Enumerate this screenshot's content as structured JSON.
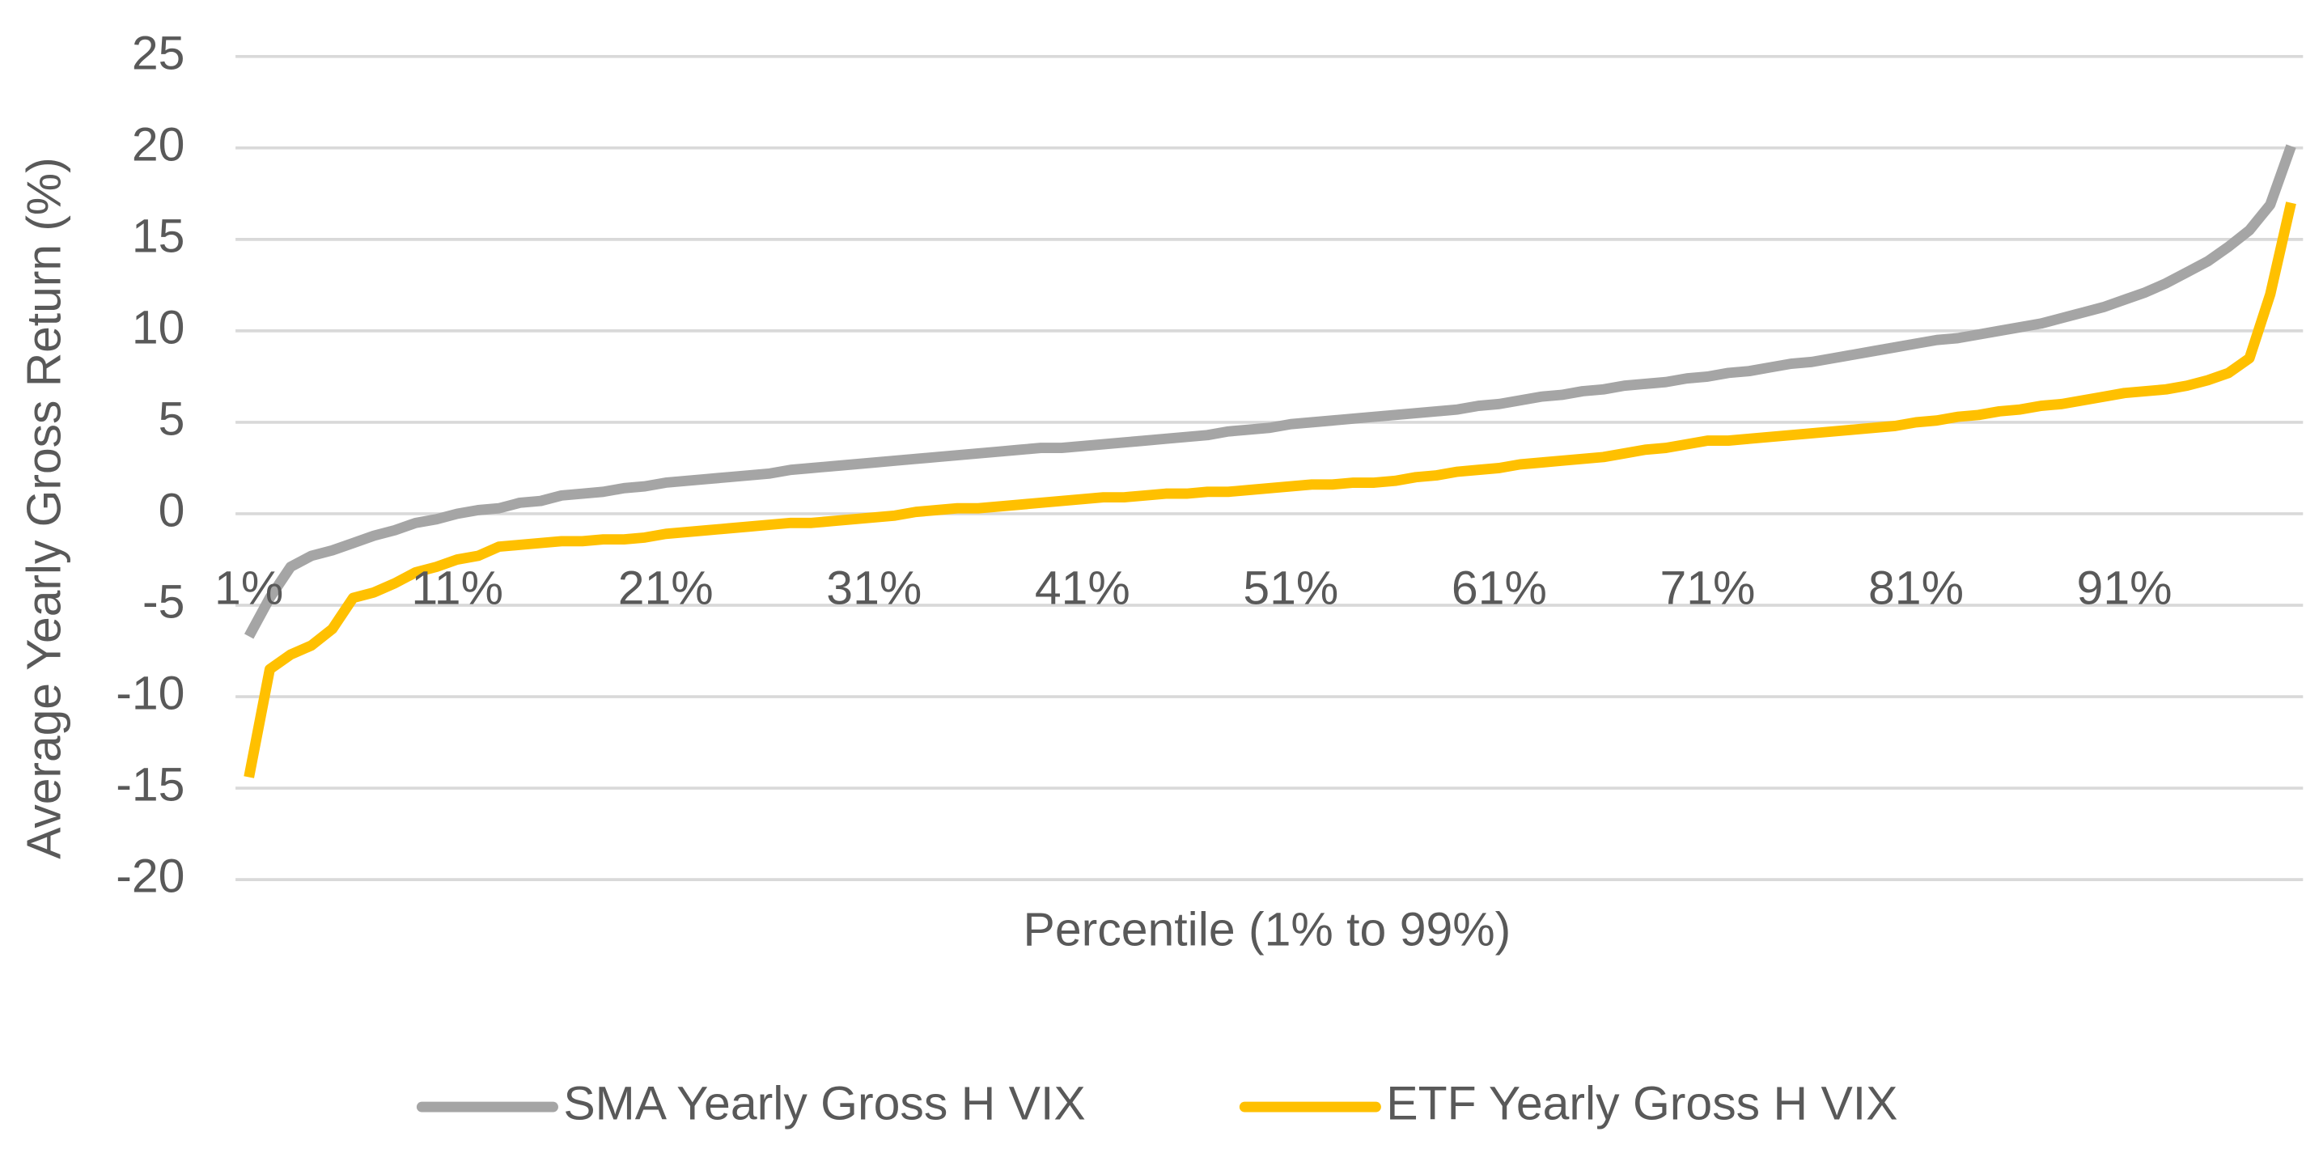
{
  "chart_data": {
    "type": "line",
    "xlabel": "Percentile (1% to 99%)",
    "ylabel": "Average Yearly Gross Return (%)",
    "categories": [
      "1%",
      null,
      null,
      null,
      null,
      null,
      null,
      null,
      null,
      null,
      "11%",
      null,
      null,
      null,
      null,
      null,
      null,
      null,
      null,
      null,
      "21%",
      null,
      null,
      null,
      null,
      null,
      null,
      null,
      null,
      null,
      "31%",
      null,
      null,
      null,
      null,
      null,
      null,
      null,
      null,
      null,
      "41%",
      null,
      null,
      null,
      null,
      null,
      null,
      null,
      null,
      null,
      "51%",
      null,
      null,
      null,
      null,
      null,
      null,
      null,
      null,
      null,
      "61%",
      null,
      null,
      null,
      null,
      null,
      null,
      null,
      null,
      null,
      "71%",
      null,
      null,
      null,
      null,
      null,
      null,
      null,
      null,
      null,
      "81%",
      null,
      null,
      null,
      null,
      null,
      null,
      null,
      null,
      null,
      "91%",
      null,
      null,
      null,
      null,
      null,
      null,
      null,
      null
    ],
    "series": [
      {
        "name": "SMA Yearly Gross H VIX",
        "color": "#a5a5a5",
        "values": [
          -6.7,
          -4.6,
          -2.9,
          -2.3,
          -2.0,
          -1.6,
          -1.2,
          -0.9,
          -0.5,
          -0.3,
          0.0,
          0.2,
          0.3,
          0.6,
          0.7,
          1.0,
          1.1,
          1.2,
          1.4,
          1.5,
          1.7,
          1.8,
          1.9,
          2.0,
          2.1,
          2.2,
          2.4,
          2.5,
          2.6,
          2.7,
          2.8,
          2.9,
          3.0,
          3.1,
          3.2,
          3.3,
          3.4,
          3.5,
          3.6,
          3.6,
          3.7,
          3.8,
          3.9,
          4.0,
          4.1,
          4.2,
          4.3,
          4.5,
          4.6,
          4.7,
          4.9,
          5.0,
          5.1,
          5.2,
          5.3,
          5.4,
          5.5,
          5.6,
          5.7,
          5.9,
          6.0,
          6.2,
          6.4,
          6.5,
          6.7,
          6.8,
          7.0,
          7.1,
          7.2,
          7.4,
          7.5,
          7.7,
          7.8,
          8.0,
          8.2,
          8.3,
          8.5,
          8.7,
          8.9,
          9.1,
          9.3,
          9.5,
          9.6,
          9.8,
          10.0,
          10.2,
          10.4,
          10.7,
          11.0,
          11.3,
          11.7,
          12.1,
          12.6,
          13.2,
          13.8,
          14.6,
          15.5,
          16.9,
          20.1
        ]
      },
      {
        "name": "ETF Yearly Gross H VIX",
        "color": "#ffc000",
        "values": [
          -14.4,
          -8.5,
          -7.7,
          -7.2,
          -6.3,
          -4.6,
          -4.3,
          -3.8,
          -3.2,
          -2.9,
          -2.5,
          -2.3,
          -1.8,
          -1.7,
          -1.6,
          -1.5,
          -1.5,
          -1.4,
          -1.4,
          -1.3,
          -1.1,
          -1.0,
          -0.9,
          -0.8,
          -0.7,
          -0.6,
          -0.5,
          -0.5,
          -0.4,
          -0.3,
          -0.2,
          -0.1,
          0.1,
          0.2,
          0.3,
          0.3,
          0.4,
          0.5,
          0.6,
          0.7,
          0.8,
          0.9,
          0.9,
          1.0,
          1.1,
          1.1,
          1.2,
          1.2,
          1.3,
          1.4,
          1.5,
          1.6,
          1.6,
          1.7,
          1.7,
          1.8,
          2.0,
          2.1,
          2.3,
          2.4,
          2.5,
          2.7,
          2.8,
          2.9,
          3.0,
          3.1,
          3.3,
          3.5,
          3.6,
          3.8,
          4.0,
          4.0,
          4.1,
          4.2,
          4.3,
          4.4,
          4.5,
          4.6,
          4.7,
          4.8,
          5.0,
          5.1,
          5.3,
          5.4,
          5.6,
          5.7,
          5.9,
          6.0,
          6.2,
          6.4,
          6.6,
          6.7,
          6.8,
          7.0,
          7.3,
          7.7,
          8.5,
          12.0,
          17.0
        ]
      }
    ],
    "ylim": [
      -20,
      25
    ],
    "yticks": [
      -20,
      -15,
      -10,
      -5,
      0,
      5,
      10,
      15,
      20,
      25
    ],
    "grid": true,
    "legend": "bottom"
  }
}
